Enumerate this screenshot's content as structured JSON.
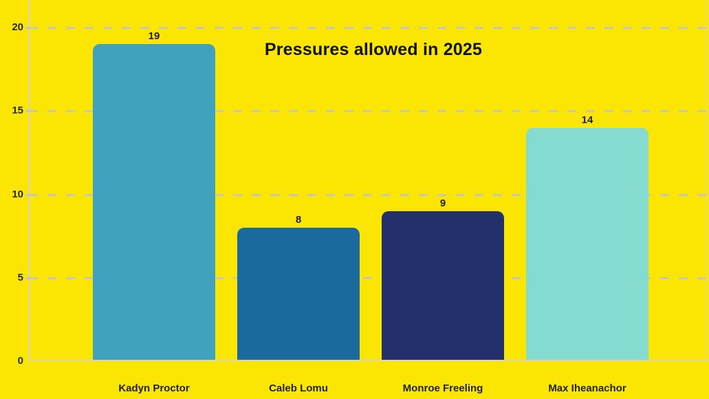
{
  "chart_data": {
    "type": "bar",
    "title": "Pressures allowed in 2025",
    "categories": [
      "Kadyn Proctor",
      "Caleb Lomu",
      "Monroe Freeling",
      "Max Iheanachor"
    ],
    "values": [
      19,
      8,
      9,
      14
    ],
    "bar_colors": [
      "#40A2BD",
      "#1A6A9E",
      "#23306B",
      "#85DBD0"
    ],
    "xlabel": "",
    "ylabel": "",
    "ylim": [
      0,
      20
    ],
    "yticks": [
      0,
      5,
      10,
      15,
      20
    ],
    "grid": "horizontal-dashed",
    "legend": "none",
    "colors": {
      "background": "#FAE602",
      "gridline": "#C8C7BC",
      "axis": "#D8D5BE",
      "title_text": "#121212",
      "label_text": "#222222"
    }
  }
}
